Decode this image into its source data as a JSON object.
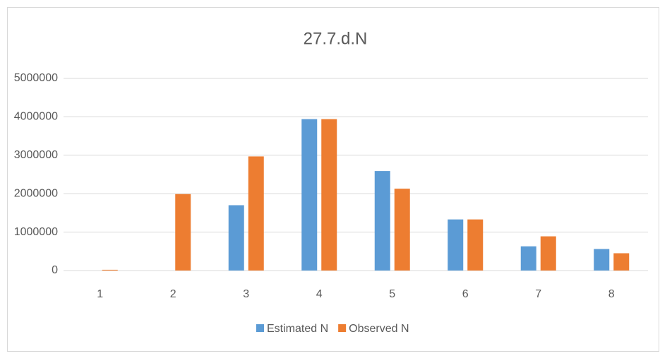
{
  "chart_data": {
    "type": "bar",
    "title": "27.7.d.N",
    "categories": [
      "1",
      "2",
      "3",
      "4",
      "5",
      "6",
      "7",
      "8"
    ],
    "series": [
      {
        "name": "Estimated N",
        "color": "#5b9bd5",
        "values": [
          0,
          0,
          1700000,
          3940000,
          2590000,
          1330000,
          630000,
          560000
        ]
      },
      {
        "name": "Observed N",
        "color": "#ed7d31",
        "values": [
          20000,
          1990000,
          2970000,
          3940000,
          2130000,
          1330000,
          890000,
          450000
        ]
      }
    ],
    "ylim": [
      0,
      5000000
    ],
    "yticks": [
      0,
      1000000,
      2000000,
      3000000,
      4000000,
      5000000
    ],
    "grid": true,
    "legend": "bottom"
  }
}
